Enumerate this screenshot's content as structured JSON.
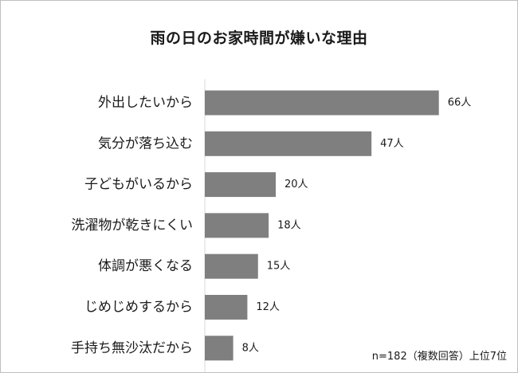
{
  "chart_data": {
    "type": "bar",
    "orientation": "horizontal",
    "title": "雨の日のお家時間が嫌いな理由",
    "categories": [
      "外出したいから",
      "気分が落ち込む",
      "子どもがいるから",
      "洗濯物が乾きにくい",
      "体調が悪くなる",
      "じめじめするから",
      "手持ち無沙汰だから"
    ],
    "values": [
      66,
      47,
      20,
      18,
      15,
      12,
      8
    ],
    "value_suffix": "人",
    "bar_color": "#7f7f7f",
    "axis_color": "#d9d9d9",
    "grid": false,
    "legend": "none",
    "note": "n=182（複数回答）上位7位"
  }
}
